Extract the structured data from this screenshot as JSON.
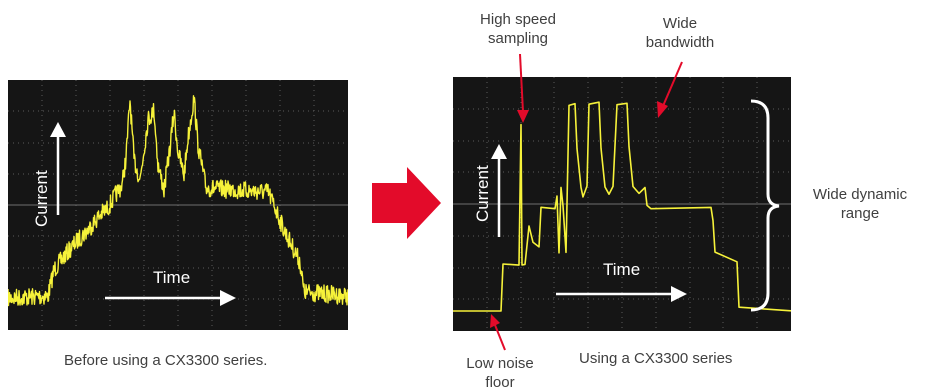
{
  "left_panel": {
    "current_label": "Current",
    "time_label": "Time",
    "caption": "Before using a CX3300 series."
  },
  "right_panel": {
    "current_label": "Current",
    "time_label": "Time",
    "caption": "Using a CX3300 series"
  },
  "annotations": {
    "high_speed_line1": "High speed",
    "high_speed_line2": "sampling",
    "bandwidth_line1": "Wide",
    "bandwidth_line2": "bandwidth",
    "dynamic_line1": "Wide dynamic",
    "dynamic_line2": "range",
    "noise_line1": "Low noise",
    "noise_line2": "floor"
  },
  "colors": {
    "trace": "#f6f23a",
    "arrow": "#e30b2a",
    "screen": "#151515"
  }
}
